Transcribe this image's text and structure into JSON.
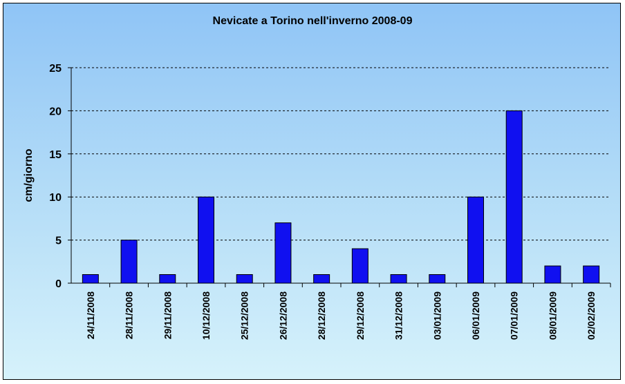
{
  "chart_data": {
    "type": "bar",
    "title": "Nevicate a Torino nell'inverno 2008-09",
    "xlabel": "",
    "ylabel": "cm/giorno",
    "ylim": [
      0,
      25
    ],
    "yticks": [
      0,
      5,
      10,
      15,
      20,
      25
    ],
    "grid": true,
    "legend": "none",
    "categories": [
      "24/11/2008",
      "28/11/2008",
      "29/11/2008",
      "10/12/2008",
      "25/12/2008",
      "26/12/2008",
      "28/12/2008",
      "29/12/2008",
      "31/12/2008",
      "03/01/2009",
      "06/01/2009",
      "07/01/2009",
      "08/01/2009",
      "02/02/2009"
    ],
    "values": [
      1,
      5,
      1,
      10,
      1,
      7,
      1,
      4,
      1,
      1,
      10,
      20,
      2,
      2
    ],
    "bar_color": "#1010f0",
    "background_top": "#8fc4f6",
    "background_bottom": "#d6f2fb"
  }
}
